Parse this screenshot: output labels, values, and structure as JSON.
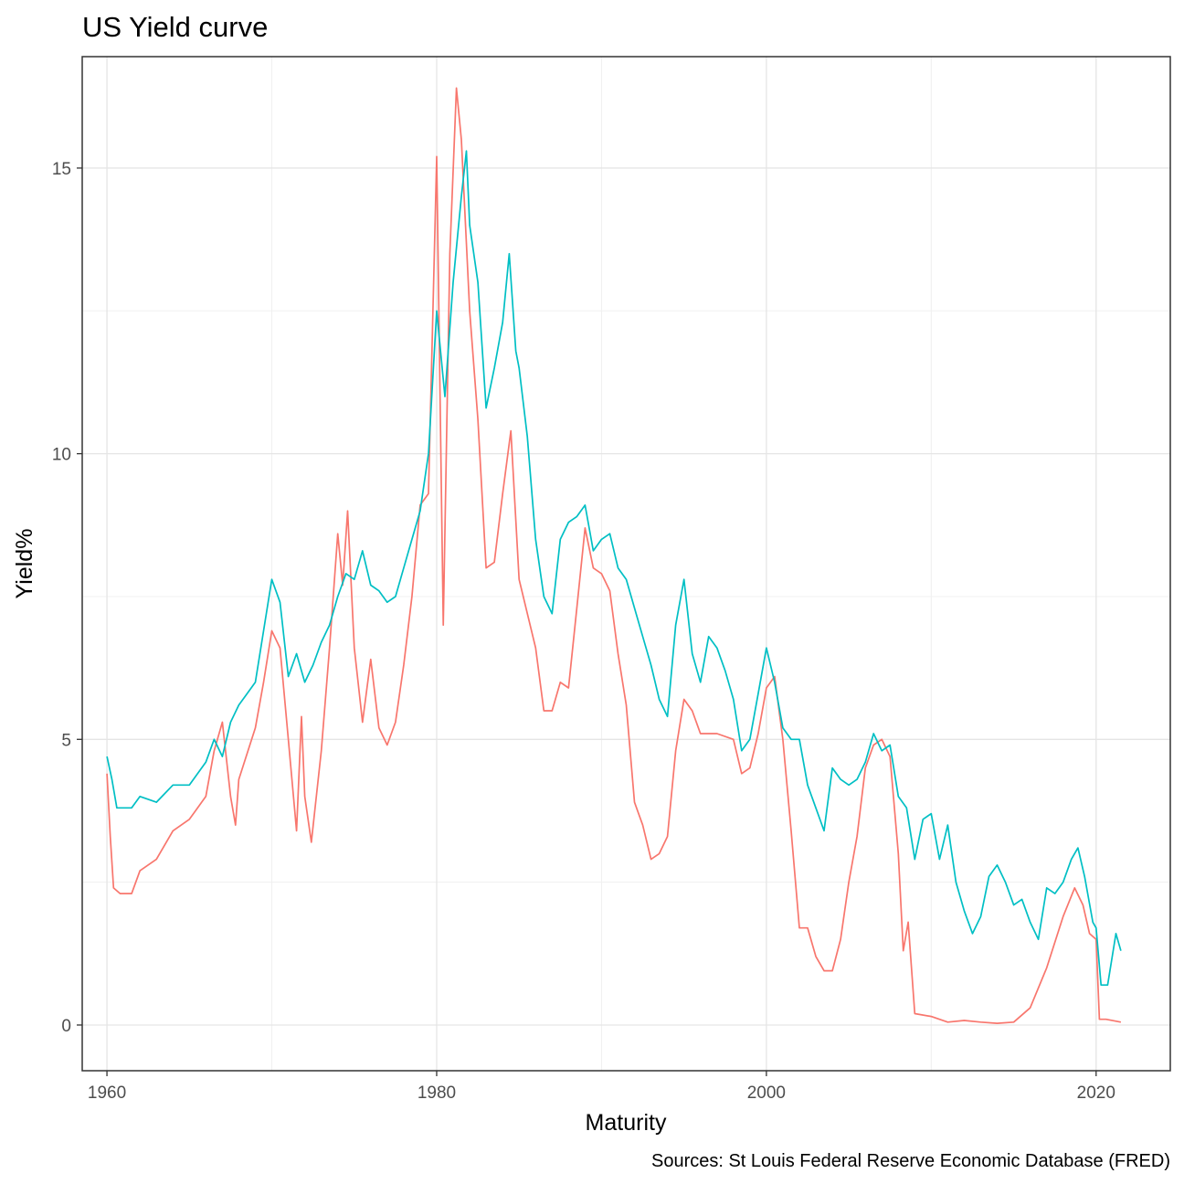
{
  "chart_data": {
    "type": "line",
    "title": "US Yield curve",
    "xlabel": "Maturity",
    "ylabel": "Yield%",
    "caption": "Sources: St Louis Federal Reserve Economic Database (FRED)",
    "xlim": [
      1958.5,
      2024.5
    ],
    "ylim": [
      -0.8,
      16.95
    ],
    "x_ticks": [
      1960,
      1980,
      2000,
      2020
    ],
    "x_tick_labels": [
      "1960",
      "1980",
      "2000",
      "2020"
    ],
    "y_ticks": [
      0,
      5,
      10,
      15
    ],
    "y_tick_labels": [
      "0",
      "5",
      "10",
      "15"
    ],
    "grid": true,
    "legend": "none",
    "series": [
      {
        "color": "#F8766D",
        "points": [
          [
            1960.0,
            4.4
          ],
          [
            1960.2,
            3.3
          ],
          [
            1960.4,
            2.4
          ],
          [
            1960.8,
            2.3
          ],
          [
            1961.5,
            2.3
          ],
          [
            1962.0,
            2.7
          ],
          [
            1963.0,
            2.9
          ],
          [
            1964.0,
            3.4
          ],
          [
            1965.0,
            3.6
          ],
          [
            1966.0,
            4.0
          ],
          [
            1966.5,
            4.8
          ],
          [
            1967.0,
            5.3
          ],
          [
            1967.5,
            4.0
          ],
          [
            1967.8,
            3.5
          ],
          [
            1968.0,
            4.3
          ],
          [
            1969.0,
            5.2
          ],
          [
            1969.5,
            6.0
          ],
          [
            1970.0,
            6.9
          ],
          [
            1970.5,
            6.6
          ],
          [
            1971.0,
            5.0
          ],
          [
            1971.5,
            3.4
          ],
          [
            1971.8,
            5.4
          ],
          [
            1972.0,
            4.0
          ],
          [
            1972.4,
            3.2
          ],
          [
            1973.0,
            4.8
          ],
          [
            1973.5,
            6.6
          ],
          [
            1974.0,
            8.6
          ],
          [
            1974.3,
            7.7
          ],
          [
            1974.6,
            9.0
          ],
          [
            1975.0,
            6.6
          ],
          [
            1975.5,
            5.3
          ],
          [
            1976.0,
            6.4
          ],
          [
            1976.5,
            5.2
          ],
          [
            1977.0,
            4.9
          ],
          [
            1977.5,
            5.3
          ],
          [
            1978.0,
            6.3
          ],
          [
            1978.5,
            7.5
          ],
          [
            1979.0,
            9.1
          ],
          [
            1979.5,
            9.3
          ],
          [
            1980.0,
            15.2
          ],
          [
            1980.4,
            7.0
          ],
          [
            1980.8,
            13.5
          ],
          [
            1981.2,
            16.4
          ],
          [
            1981.5,
            15.5
          ],
          [
            1982.0,
            12.5
          ],
          [
            1982.5,
            10.6
          ],
          [
            1983.0,
            8.0
          ],
          [
            1983.5,
            8.1
          ],
          [
            1984.0,
            9.3
          ],
          [
            1984.5,
            10.4
          ],
          [
            1985.0,
            7.8
          ],
          [
            1986.0,
            6.6
          ],
          [
            1986.5,
            5.5
          ],
          [
            1987.0,
            5.5
          ],
          [
            1987.5,
            6.0
          ],
          [
            1988.0,
            5.9
          ],
          [
            1988.5,
            7.3
          ],
          [
            1989.0,
            8.7
          ],
          [
            1989.5,
            8.0
          ],
          [
            1990.0,
            7.9
          ],
          [
            1990.5,
            7.6
          ],
          [
            1991.0,
            6.5
          ],
          [
            1991.5,
            5.6
          ],
          [
            1992.0,
            3.9
          ],
          [
            1992.5,
            3.5
          ],
          [
            1993.0,
            2.9
          ],
          [
            1993.5,
            3.0
          ],
          [
            1994.0,
            3.3
          ],
          [
            1994.5,
            4.8
          ],
          [
            1995.0,
            5.7
          ],
          [
            1995.5,
            5.5
          ],
          [
            1996.0,
            5.1
          ],
          [
            1997.0,
            5.1
          ],
          [
            1998.0,
            5.0
          ],
          [
            1998.5,
            4.4
          ],
          [
            1999.0,
            4.5
          ],
          [
            1999.5,
            5.1
          ],
          [
            2000.0,
            5.9
          ],
          [
            2000.5,
            6.1
          ],
          [
            2001.0,
            5.0
          ],
          [
            2001.5,
            3.4
          ],
          [
            2002.0,
            1.7
          ],
          [
            2002.5,
            1.7
          ],
          [
            2003.0,
            1.2
          ],
          [
            2003.5,
            0.95
          ],
          [
            2004.0,
            0.95
          ],
          [
            2004.5,
            1.5
          ],
          [
            2005.0,
            2.5
          ],
          [
            2005.5,
            3.3
          ],
          [
            2006.0,
            4.5
          ],
          [
            2006.5,
            4.9
          ],
          [
            2007.0,
            5.0
          ],
          [
            2007.5,
            4.7
          ],
          [
            2008.0,
            3.0
          ],
          [
            2008.3,
            1.3
          ],
          [
            2008.6,
            1.8
          ],
          [
            2009.0,
            0.2
          ],
          [
            2010.0,
            0.15
          ],
          [
            2011.0,
            0.05
          ],
          [
            2012.0,
            0.08
          ],
          [
            2013.0,
            0.05
          ],
          [
            2014.0,
            0.03
          ],
          [
            2015.0,
            0.05
          ],
          [
            2016.0,
            0.3
          ],
          [
            2017.0,
            1.0
          ],
          [
            2018.0,
            1.9
          ],
          [
            2018.7,
            2.4
          ],
          [
            2019.2,
            2.1
          ],
          [
            2019.6,
            1.6
          ],
          [
            2020.0,
            1.5
          ],
          [
            2020.2,
            0.1
          ],
          [
            2020.6,
            0.1
          ],
          [
            2021.5,
            0.05
          ]
        ]
      },
      {
        "color": "#00BFC4",
        "points": [
          [
            1960.0,
            4.7
          ],
          [
            1960.3,
            4.3
          ],
          [
            1960.6,
            3.8
          ],
          [
            1961.0,
            3.8
          ],
          [
            1961.5,
            3.8
          ],
          [
            1962.0,
            4.0
          ],
          [
            1963.0,
            3.9
          ],
          [
            1964.0,
            4.2
          ],
          [
            1965.0,
            4.2
          ],
          [
            1966.0,
            4.6
          ],
          [
            1966.5,
            5.0
          ],
          [
            1967.0,
            4.7
          ],
          [
            1967.5,
            5.3
          ],
          [
            1968.0,
            5.6
          ],
          [
            1969.0,
            6.0
          ],
          [
            1969.5,
            6.9
          ],
          [
            1970.0,
            7.8
          ],
          [
            1970.5,
            7.4
          ],
          [
            1971.0,
            6.1
          ],
          [
            1971.5,
            6.5
          ],
          [
            1972.0,
            6.0
          ],
          [
            1972.5,
            6.3
          ],
          [
            1973.0,
            6.7
          ],
          [
            1973.5,
            7.0
          ],
          [
            1974.0,
            7.5
          ],
          [
            1974.5,
            7.9
          ],
          [
            1975.0,
            7.8
          ],
          [
            1975.5,
            8.3
          ],
          [
            1976.0,
            7.7
          ],
          [
            1976.5,
            7.6
          ],
          [
            1977.0,
            7.4
          ],
          [
            1977.5,
            7.5
          ],
          [
            1978.0,
            8.0
          ],
          [
            1978.5,
            8.5
          ],
          [
            1979.0,
            9.0
          ],
          [
            1979.5,
            10.0
          ],
          [
            1980.0,
            12.5
          ],
          [
            1980.5,
            11.0
          ],
          [
            1981.0,
            13.0
          ],
          [
            1981.5,
            14.5
          ],
          [
            1981.8,
            15.3
          ],
          [
            1982.0,
            14.0
          ],
          [
            1982.5,
            13.0
          ],
          [
            1983.0,
            10.8
          ],
          [
            1983.5,
            11.5
          ],
          [
            1984.0,
            12.3
          ],
          [
            1984.4,
            13.5
          ],
          [
            1984.8,
            11.8
          ],
          [
            1985.0,
            11.5
          ],
          [
            1985.5,
            10.3
          ],
          [
            1986.0,
            8.5
          ],
          [
            1986.5,
            7.5
          ],
          [
            1987.0,
            7.2
          ],
          [
            1987.5,
            8.5
          ],
          [
            1988.0,
            8.8
          ],
          [
            1988.5,
            8.9
          ],
          [
            1989.0,
            9.1
          ],
          [
            1989.5,
            8.3
          ],
          [
            1990.0,
            8.5
          ],
          [
            1990.5,
            8.6
          ],
          [
            1991.0,
            8.0
          ],
          [
            1991.5,
            7.8
          ],
          [
            1992.0,
            7.3
          ],
          [
            1992.5,
            6.8
          ],
          [
            1993.0,
            6.3
          ],
          [
            1993.5,
            5.7
          ],
          [
            1994.0,
            5.4
          ],
          [
            1994.5,
            7.0
          ],
          [
            1995.0,
            7.8
          ],
          [
            1995.5,
            6.5
          ],
          [
            1996.0,
            6.0
          ],
          [
            1996.5,
            6.8
          ],
          [
            1997.0,
            6.6
          ],
          [
            1997.5,
            6.2
          ],
          [
            1998.0,
            5.7
          ],
          [
            1998.5,
            4.8
          ],
          [
            1999.0,
            5.0
          ],
          [
            1999.5,
            5.8
          ],
          [
            2000.0,
            6.6
          ],
          [
            2000.5,
            6.0
          ],
          [
            2001.0,
            5.2
          ],
          [
            2001.5,
            5.0
          ],
          [
            2002.0,
            5.0
          ],
          [
            2002.5,
            4.2
          ],
          [
            2003.0,
            3.8
          ],
          [
            2003.5,
            3.4
          ],
          [
            2004.0,
            4.5
          ],
          [
            2004.5,
            4.3
          ],
          [
            2005.0,
            4.2
          ],
          [
            2005.5,
            4.3
          ],
          [
            2006.0,
            4.6
          ],
          [
            2006.5,
            5.1
          ],
          [
            2007.0,
            4.8
          ],
          [
            2007.5,
            4.9
          ],
          [
            2008.0,
            4.0
          ],
          [
            2008.5,
            3.8
          ],
          [
            2009.0,
            2.9
          ],
          [
            2009.5,
            3.6
          ],
          [
            2010.0,
            3.7
          ],
          [
            2010.5,
            2.9
          ],
          [
            2011.0,
            3.5
          ],
          [
            2011.5,
            2.5
          ],
          [
            2012.0,
            2.0
          ],
          [
            2012.5,
            1.6
          ],
          [
            2013.0,
            1.9
          ],
          [
            2013.5,
            2.6
          ],
          [
            2014.0,
            2.8
          ],
          [
            2014.5,
            2.5
          ],
          [
            2015.0,
            2.1
          ],
          [
            2015.5,
            2.2
          ],
          [
            2016.0,
            1.8
          ],
          [
            2016.5,
            1.5
          ],
          [
            2017.0,
            2.4
          ],
          [
            2017.5,
            2.3
          ],
          [
            2018.0,
            2.5
          ],
          [
            2018.5,
            2.9
          ],
          [
            2018.9,
            3.1
          ],
          [
            2019.3,
            2.6
          ],
          [
            2019.8,
            1.8
          ],
          [
            2020.0,
            1.7
          ],
          [
            2020.3,
            0.7
          ],
          [
            2020.7,
            0.7
          ],
          [
            2021.2,
            1.6
          ],
          [
            2021.5,
            1.3
          ]
        ]
      }
    ]
  }
}
